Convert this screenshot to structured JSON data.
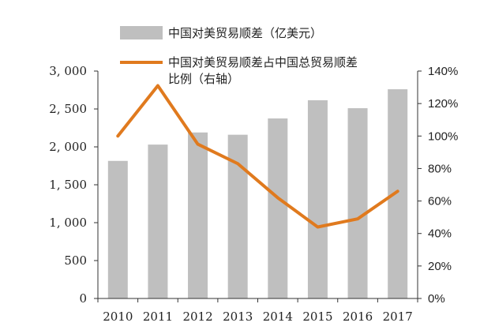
{
  "chart_data": {
    "type": "bar",
    "categories": [
      "2010",
      "2011",
      "2012",
      "2013",
      "2014",
      "2015",
      "2016",
      "2017"
    ],
    "series": [
      {
        "name": "中国对美贸易顺差（亿美元）",
        "type": "bar",
        "axis": "left",
        "color": "#bfbfbf",
        "values": [
          1815,
          2030,
          2190,
          2160,
          2375,
          2615,
          2510,
          2760
        ]
      },
      {
        "name": "中国对美贸易顺差占中国总贸易顺差比例（右轴）",
        "legend_lines": [
          "中国对美贸易顺差占中国总贸易顺差",
          "比例（右轴）"
        ],
        "type": "line",
        "axis": "right",
        "color": "#e07a1e",
        "values": [
          100,
          131,
          95,
          83,
          62,
          44,
          49,
          66
        ]
      }
    ],
    "left_axis": {
      "range": [
        0,
        3000
      ],
      "ticks": [
        0,
        500,
        1000,
        1500,
        2000,
        2500,
        3000
      ],
      "tick_labels": [
        "0",
        "500",
        "1, 000",
        "1, 500",
        "2, 000",
        "2, 500",
        "3, 000"
      ]
    },
    "right_axis": {
      "range": [
        0,
        140
      ],
      "ticks": [
        0,
        20,
        40,
        60,
        80,
        100,
        120,
        140
      ],
      "tick_labels": [
        "0%",
        "20%",
        "40%",
        "60%",
        "80%",
        "100%",
        "120%",
        "140%"
      ]
    },
    "grid": false,
    "legend_position": "top-center"
  }
}
